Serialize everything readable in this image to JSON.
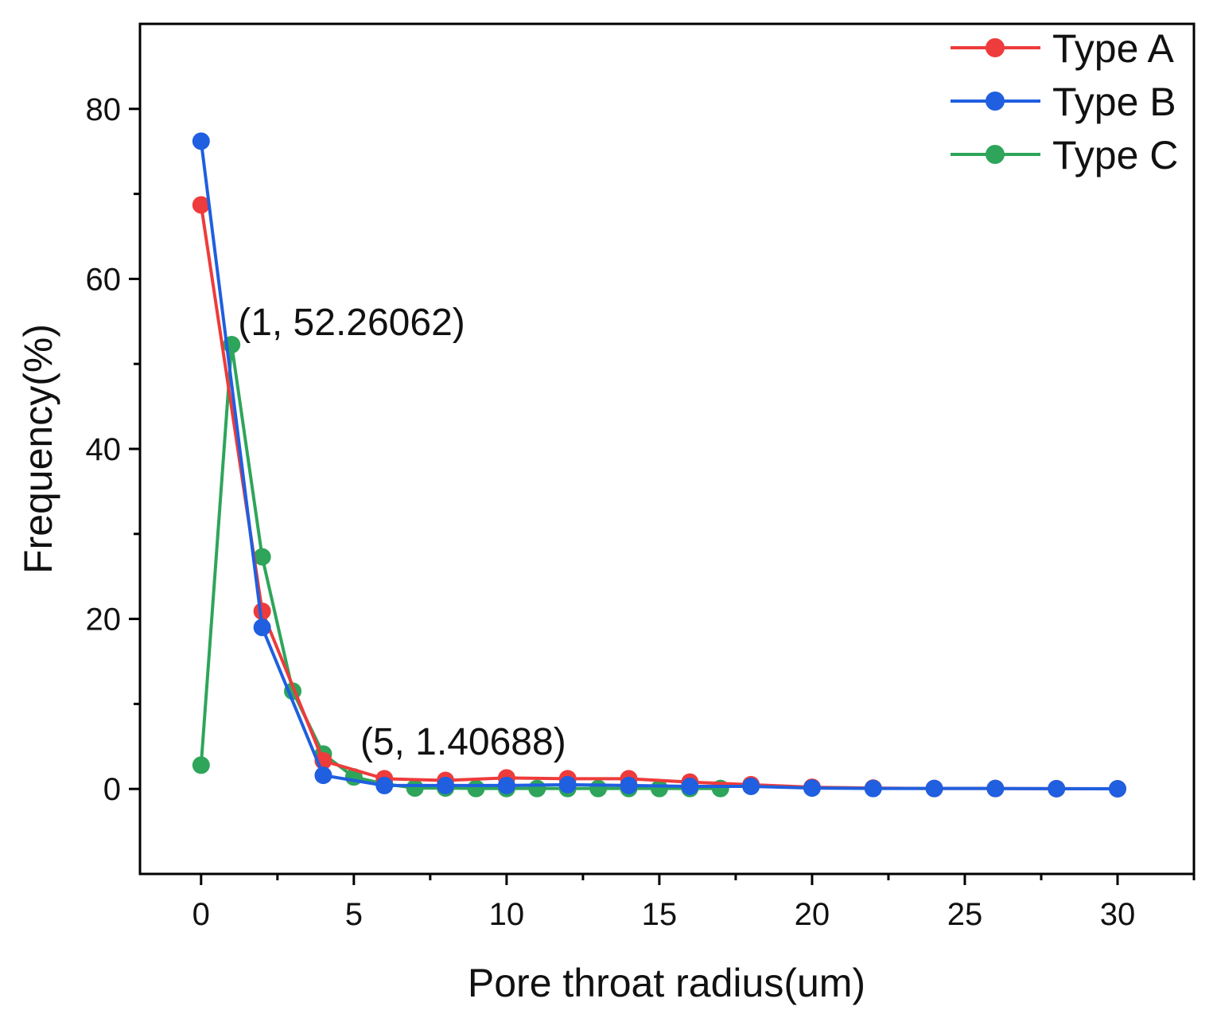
{
  "chart_data": {
    "type": "line",
    "title": "",
    "xlabel": "Pore throat radius(um)",
    "ylabel": "Frequency(%)",
    "xlim": [
      -2,
      32.5
    ],
    "ylim": [
      -10,
      90
    ],
    "xticks": [
      0,
      5,
      10,
      15,
      20,
      25,
      30
    ],
    "xtick_labels": [
      "0",
      "5",
      "10",
      "15",
      "20",
      "25",
      "30"
    ],
    "xminor": [
      2.5,
      7.5,
      12.5,
      17.5,
      22.5,
      27.5,
      32.5
    ],
    "yticks": [
      0,
      20,
      40,
      60,
      80
    ],
    "ytick_labels": [
      "0",
      "20",
      "40",
      "60",
      "80"
    ],
    "yminor": [
      10,
      30,
      50,
      70
    ],
    "grid": false,
    "legend_position": "top-right",
    "series": [
      {
        "name": "Type A",
        "color": "#ee3b3b",
        "x": [
          0,
          2,
          4,
          6,
          8,
          10,
          12,
          14,
          16,
          18,
          20,
          22,
          24,
          26,
          28,
          30
        ],
        "y": [
          68.7,
          20.9,
          3.3,
          1.2,
          1.0,
          1.3,
          1.2,
          1.2,
          0.8,
          0.5,
          0.2,
          0.1,
          0.05,
          0.05,
          0.03,
          0.02
        ]
      },
      {
        "name": "Type B",
        "color": "#1f5fe0",
        "x": [
          0,
          2,
          4,
          6,
          8,
          10,
          12,
          14,
          16,
          18,
          20,
          22,
          24,
          26,
          28,
          30
        ],
        "y": [
          76.2,
          19.0,
          1.6,
          0.4,
          0.4,
          0.4,
          0.5,
          0.4,
          0.3,
          0.3,
          0.1,
          0.05,
          0.05,
          0.05,
          0.03,
          0.02
        ]
      },
      {
        "name": "Type C",
        "color": "#2ea55a",
        "x": [
          0,
          1,
          2,
          3,
          4,
          5,
          6,
          7,
          8,
          9,
          10,
          11,
          12,
          13,
          14,
          15,
          16,
          17
        ],
        "y": [
          2.8,
          52.26062,
          27.3,
          11.5,
          4.1,
          1.40688,
          0.6,
          0.1,
          0.1,
          0.05,
          0.05,
          0.05,
          0.05,
          0.05,
          0.05,
          0.05,
          0.05,
          0.05
        ]
      }
    ],
    "annotations": [
      {
        "text": "(1, 52.26062)",
        "x": 1,
        "y": 52.26062
      },
      {
        "text": "(5, 1.40688)",
        "x": 5,
        "y": 1.40688
      }
    ]
  }
}
